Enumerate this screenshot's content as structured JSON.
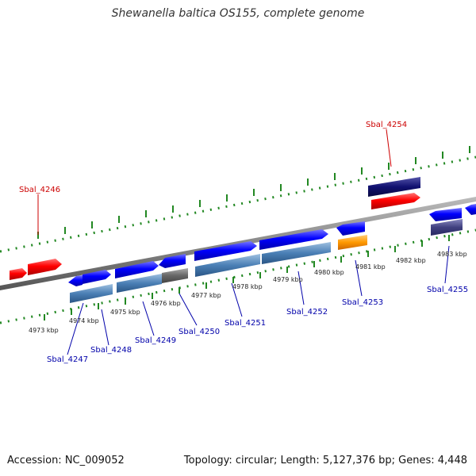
{
  "title": "Shewanella baltica OS155, complete genome",
  "footer": {
    "accession": "Accession: NC_009052",
    "summary": "Topology: circular; Length: 5,127,376 bp; Genes: 4,448"
  },
  "colors": {
    "red_gene": "#ff0000",
    "blue_gene": "#0000ff",
    "steel_cds": "#4a7fb5",
    "grey_cds": "#666666",
    "navy_cds": "#101070",
    "slate_cds": "#404080",
    "orange_cds": "#ff9900",
    "backbone": "#888888",
    "tick": "#228822",
    "red_label": "#cc0000",
    "blue_label": "#0000aa"
  },
  "axis_labels": [
    "4973 kbp",
    "4974 kbp",
    "4975 kbp",
    "4976 kbp",
    "4977 kbp",
    "4978 kbp",
    "4979 kbp",
    "4980 kbp",
    "4981 kbp",
    "4982 kbp",
    "4983 kbp"
  ],
  "gene_labels": {
    "sbal_4246": "Sbal_4246",
    "sbal_4254": "Sbal_4254",
    "sbal_4247": "Sbal_4247",
    "sbal_4248": "Sbal_4248",
    "sbal_4249": "Sbal_4249",
    "sbal_4250": "Sbal_4250",
    "sbal_4251": "Sbal_4251",
    "sbal_4252": "Sbal_4252",
    "sbal_4253": "Sbal_4253",
    "sbal_4255": "Sbal_4255"
  }
}
